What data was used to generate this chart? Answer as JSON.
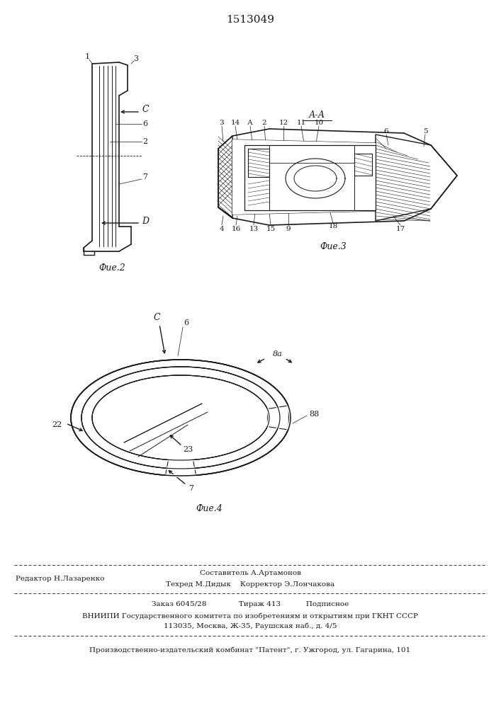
{
  "title": "1513049",
  "bg_color": "#ffffff",
  "line_color": "#1a1a1a",
  "fig2_label": "Фие.2",
  "fig3_label": "Фие.3",
  "fig4_label": "Фие.4",
  "footer_editor": "Редактор Н.Лазаренко",
  "footer_author": "Составитель А.Артамонов",
  "footer_tech": "Техред М.Дидык    Корректор Э.Лончакова",
  "footer_order": "Заказ 6045/28              Тираж 413           Подписное",
  "footer_vniip1": "ВНИИПИ Государственного комитета по изобретениям и открытиям при ГКНТ СССР",
  "footer_vniip2": "113035, Москва, Ж-35, Раушская наб., д. 4/5",
  "footer_plant": "Производственно-издательский комбинат \"Патент\", г. Ужгород, ул. Гагарина, 101"
}
